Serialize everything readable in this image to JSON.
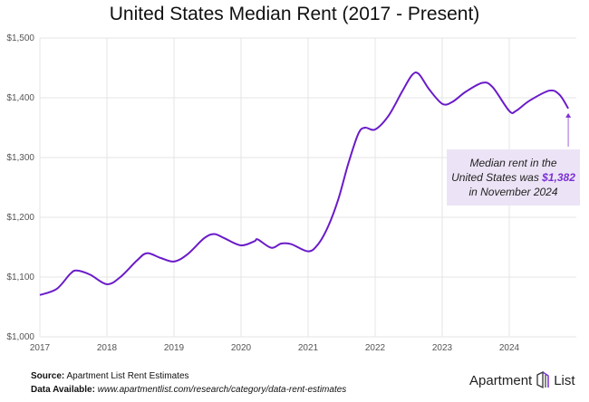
{
  "chart_data": {
    "type": "line",
    "title": "United States Median Rent (2017 - Present)",
    "xlabel": "",
    "ylabel": "",
    "xlim": [
      2017,
      2025
    ],
    "ylim": [
      1000,
      1500
    ],
    "grid": true,
    "x_ticks": [
      "2017",
      "2018",
      "2019",
      "2020",
      "2021",
      "2022",
      "2023",
      "2024"
    ],
    "y_ticks": [
      "$1,000",
      "$1,100",
      "$1,200",
      "$1,300",
      "$1,400",
      "$1,500"
    ],
    "line_color": "#6a1bc9",
    "series": [
      {
        "x": [
          2017.0,
          2017.25,
          2017.45,
          2017.55,
          2017.75,
          2018.0,
          2018.2,
          2018.45,
          2018.6,
          2018.8,
          2019.0,
          2019.2,
          2019.45,
          2019.6,
          2019.75,
          2020.0,
          2020.2,
          2020.25,
          2020.45,
          2020.6,
          2020.75,
          2021.0,
          2021.15,
          2021.3,
          2021.45,
          2021.6,
          2021.75,
          2021.85,
          2022.0,
          2022.2,
          2022.4,
          2022.55,
          2022.65,
          2022.8,
          2023.0,
          2023.15,
          2023.35,
          2023.6,
          2023.75,
          2024.0,
          2024.1,
          2024.3,
          2024.6,
          2024.75,
          2024.88
        ],
        "y": [
          1070,
          1080,
          1105,
          1111,
          1104,
          1088,
          1100,
          1128,
          1140,
          1132,
          1126,
          1138,
          1165,
          1172,
          1165,
          1153,
          1160,
          1163,
          1149,
          1156,
          1155,
          1143,
          1155,
          1185,
          1230,
          1290,
          1340,
          1350,
          1347,
          1370,
          1410,
          1438,
          1440,
          1415,
          1390,
          1393,
          1410,
          1425,
          1418,
          1378,
          1378,
          1395,
          1412,
          1405,
          1382
        ]
      }
    ],
    "annotation": {
      "line1": "Median rent in the",
      "line2": "United States was ",
      "value": "$1,382",
      "line3": "in November 2024"
    }
  },
  "footer": {
    "source_label": "Source:",
    "source_text": " Apartment List Rent Estimates",
    "data_label": "Data Available:",
    "data_url": " www.apartmentlist.com/research/category/data-rent-estimates"
  },
  "logo": {
    "left": "Apartment",
    "right": "List"
  }
}
